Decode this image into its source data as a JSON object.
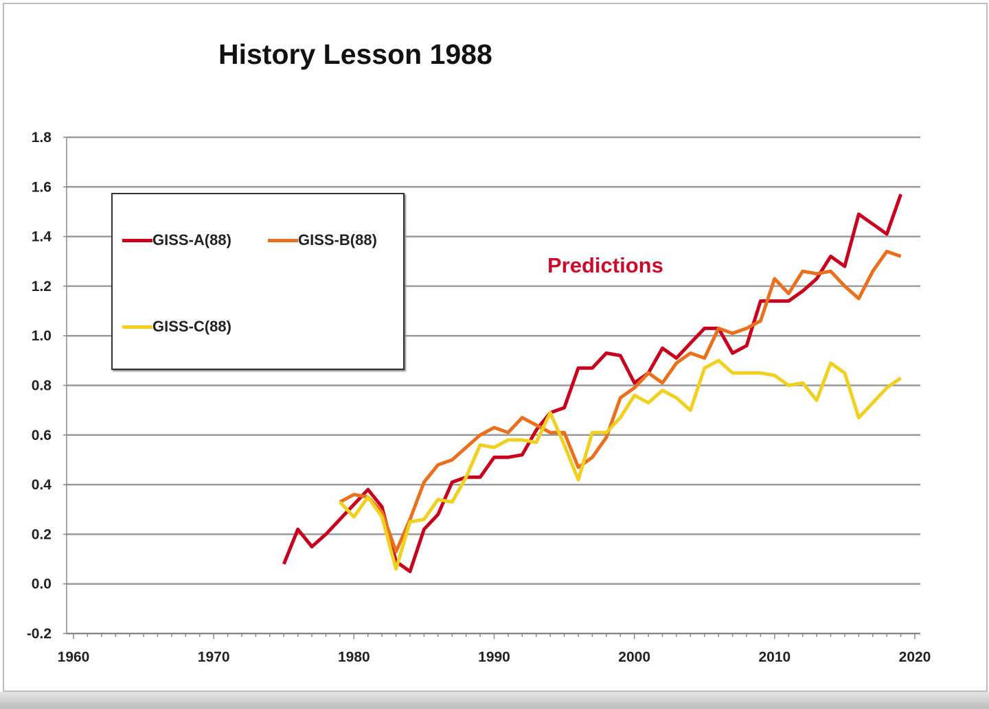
{
  "chart_data": {
    "type": "line",
    "title": "History Lesson 1988",
    "annotation": "Predictions",
    "annotation_color": "#cc0a2a",
    "xlabel": "",
    "ylabel": "",
    "xlim": [
      1960,
      2020
    ],
    "ylim": [
      -0.2,
      1.8
    ],
    "x_ticks": [
      "1960",
      "1970",
      "1980",
      "1990",
      "2000",
      "2010",
      "2020"
    ],
    "y_ticks": [
      "1.8",
      "1.6",
      "1.4",
      "1.2",
      "1.0",
      "0.8",
      "0.6",
      "0.4",
      "0.2",
      "0.0",
      "-0.2"
    ],
    "grid": "horizontal",
    "legend_placement": "top-left",
    "series": [
      {
        "name": "GISS-A(88)",
        "color": "#c8001e",
        "x_start": 1975,
        "values": [
          0.08,
          0.22,
          0.15,
          0.2,
          0.26,
          0.32,
          0.38,
          0.31,
          0.09,
          0.05,
          0.22,
          0.28,
          0.41,
          0.43,
          0.43,
          0.51,
          0.51,
          0.52,
          0.62,
          0.69,
          0.71,
          0.87,
          0.87,
          0.93,
          0.92,
          0.81,
          0.85,
          0.95,
          0.91,
          0.97,
          1.03,
          1.03,
          0.93,
          0.96,
          1.14,
          1.14,
          1.14,
          1.18,
          1.23,
          1.32,
          1.28,
          1.49,
          1.45,
          1.41,
          1.57
        ]
      },
      {
        "name": "GISS-B(88)",
        "color": "#e8701e",
        "x_start": 1979,
        "values": [
          0.33,
          0.36,
          0.35,
          0.29,
          0.13,
          0.26,
          0.41,
          0.48,
          0.5,
          0.55,
          0.6,
          0.63,
          0.61,
          0.67,
          0.64,
          0.61,
          0.61,
          0.47,
          0.51,
          0.59,
          0.75,
          0.79,
          0.85,
          0.81,
          0.89,
          0.93,
          0.91,
          1.03,
          1.01,
          1.03,
          1.06,
          1.23,
          1.17,
          1.26,
          1.25,
          1.26,
          1.2,
          1.15,
          1.26,
          1.34,
          1.32
        ]
      },
      {
        "name": "GISS-C(88)",
        "color": "#f0d020",
        "x_start": 1979,
        "values": [
          0.33,
          0.27,
          0.35,
          0.27,
          0.06,
          0.25,
          0.26,
          0.34,
          0.33,
          0.43,
          0.56,
          0.55,
          0.58,
          0.58,
          0.57,
          0.69,
          0.56,
          0.42,
          0.61,
          0.61,
          0.67,
          0.76,
          0.73,
          0.78,
          0.75,
          0.7,
          0.87,
          0.9,
          0.85,
          0.85,
          0.85,
          0.84,
          0.8,
          0.81,
          0.74,
          0.89,
          0.85,
          0.67,
          0.73,
          0.79,
          0.83
        ]
      }
    ]
  }
}
